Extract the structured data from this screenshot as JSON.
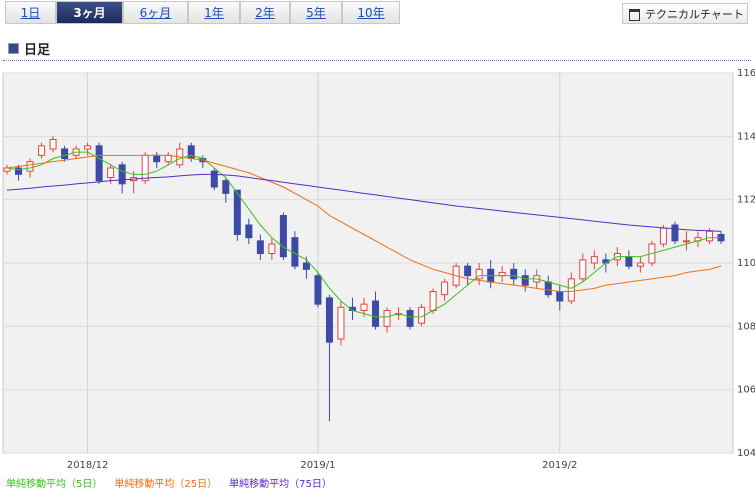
{
  "tabs": [
    "1日",
    "3ヶ月",
    "6ヶ月",
    "1年",
    "2年",
    "5年",
    "10年"
  ],
  "active_tab": 1,
  "button": "テクニカルチャート",
  "chart_data": {
    "type": "candlestick",
    "title": "日足",
    "categories": [
      null,
      null,
      null,
      null,
      null,
      null,
      null,
      "2018/12",
      null,
      null,
      null,
      null,
      null,
      null,
      null,
      null,
      null,
      null,
      null,
      null,
      null,
      null,
      null,
      null,
      null,
      null,
      null,
      "2019/1",
      null,
      null,
      null,
      null,
      null,
      null,
      null,
      null,
      null,
      null,
      null,
      null,
      null,
      null,
      null,
      null,
      null,
      null,
      null,
      null,
      "2019/2",
      null,
      null,
      null,
      null,
      null,
      null,
      null,
      null,
      null,
      null,
      null,
      null,
      null,
      null
    ],
    "open": [
      112.9,
      113.0,
      112.9,
      113.4,
      113.6,
      113.6,
      113.4,
      113.6,
      113.7,
      112.7,
      113.1,
      112.6,
      112.6,
      113.4,
      113.2,
      113.1,
      113.7,
      113.3,
      112.9,
      112.6,
      112.3,
      111.2,
      110.7,
      110.3,
      111.5,
      110.8,
      110.0,
      109.6,
      108.9,
      107.6,
      108.6,
      108.5,
      108.8,
      108.0,
      108.4,
      108.5,
      108.1,
      108.5,
      109.0,
      109.3,
      109.9,
      109.5,
      109.8,
      109.6,
      109.8,
      109.6,
      109.4,
      109.4,
      109.1,
      108.8,
      109.5,
      110.0,
      110.1,
      110.1,
      110.2,
      109.9,
      110.0,
      110.6,
      111.2,
      110.7,
      110.7,
      110.7,
      110.9
    ],
    "high": [
      113.1,
      113.1,
      113.3,
      113.8,
      114.0,
      113.7,
      113.7,
      113.8,
      113.8,
      113.1,
      113.2,
      112.9,
      113.5,
      113.5,
      113.5,
      113.8,
      113.8,
      113.4,
      113.0,
      112.7,
      112.3,
      111.4,
      110.9,
      110.8,
      111.6,
      111.0,
      110.2,
      109.7,
      109.0,
      108.8,
      108.9,
      108.9,
      109.1,
      108.6,
      108.6,
      108.6,
      108.7,
      109.2,
      109.5,
      110.0,
      110.0,
      110.0,
      110.1,
      109.9,
      110.0,
      109.8,
      109.8,
      109.6,
      109.3,
      109.7,
      110.3,
      110.4,
      110.3,
      110.5,
      110.4,
      110.2,
      110.7,
      111.2,
      111.3,
      111.0,
      111.0,
      111.1,
      111.0
    ],
    "low": [
      112.8,
      112.6,
      112.7,
      113.3,
      113.5,
      113.2,
      113.3,
      113.4,
      112.5,
      112.5,
      112.2,
      112.2,
      112.5,
      113.0,
      113.1,
      113.0,
      113.2,
      113.0,
      112.3,
      111.9,
      110.7,
      110.6,
      110.1,
      110.1,
      110.1,
      109.8,
      109.5,
      108.6,
      105.0,
      107.4,
      108.2,
      108.3,
      107.9,
      107.8,
      108.2,
      107.9,
      108.0,
      108.4,
      108.8,
      109.2,
      109.3,
      109.3,
      109.2,
      109.4,
      109.3,
      109.1,
      109.2,
      108.9,
      108.5,
      108.7,
      109.4,
      109.8,
      109.7,
      109.9,
      109.8,
      109.7,
      109.9,
      110.5,
      110.6,
      110.4,
      110.5,
      110.6,
      110.6
    ],
    "close": [
      113.0,
      112.8,
      113.2,
      113.7,
      113.9,
      113.3,
      113.6,
      113.7,
      112.6,
      113.0,
      112.5,
      112.7,
      113.4,
      113.2,
      113.4,
      113.6,
      113.3,
      113.2,
      112.4,
      112.2,
      110.9,
      110.8,
      110.3,
      110.6,
      110.2,
      109.9,
      109.8,
      108.7,
      107.5,
      108.6,
      108.5,
      108.7,
      108.0,
      108.5,
      108.4,
      108.0,
      108.6,
      109.1,
      109.4,
      109.9,
      109.6,
      109.8,
      109.4,
      109.7,
      109.5,
      109.3,
      109.6,
      109.0,
      108.8,
      109.5,
      110.1,
      110.2,
      110.0,
      110.3,
      109.9,
      110.0,
      110.6,
      111.1,
      110.7,
      110.7,
      110.8,
      111.0,
      110.7
    ],
    "up_color": "#e2463c",
    "down_color": "#3d4aa6",
    "series": [
      {
        "name": "単純移動平均（5日）",
        "color": "#39c418",
        "values": [
          113.0,
          112.95,
          113.0,
          113.1,
          113.3,
          113.4,
          113.5,
          113.5,
          113.3,
          113.1,
          112.9,
          112.8,
          112.8,
          112.9,
          113.1,
          113.3,
          113.4,
          113.3,
          113.0,
          112.7,
          112.2,
          111.7,
          111.2,
          110.8,
          110.5,
          110.3,
          110.1,
          109.7,
          109.2,
          108.8,
          108.5,
          108.4,
          108.3,
          108.3,
          108.4,
          108.3,
          108.3,
          108.5,
          108.7,
          109.0,
          109.3,
          109.6,
          109.6,
          109.6,
          109.6,
          109.5,
          109.5,
          109.4,
          109.3,
          109.2,
          109.4,
          109.7,
          110.0,
          110.2,
          110.2,
          110.2,
          110.3,
          110.4,
          110.5,
          110.6,
          110.7,
          110.8,
          110.8
        ]
      },
      {
        "name": "単純移動平均（25日）",
        "color": "#ee6f16",
        "values": [
          113.0,
          113.05,
          113.1,
          113.15,
          113.2,
          113.25,
          113.3,
          113.35,
          113.4,
          113.4,
          113.4,
          113.4,
          113.4,
          113.4,
          113.4,
          113.35,
          113.3,
          113.25,
          113.15,
          113.05,
          112.95,
          112.85,
          112.7,
          112.55,
          112.4,
          112.2,
          112.0,
          111.8,
          111.5,
          111.3,
          111.1,
          110.9,
          110.7,
          110.5,
          110.3,
          110.1,
          109.95,
          109.8,
          109.7,
          109.6,
          109.5,
          109.45,
          109.4,
          109.35,
          109.3,
          109.25,
          109.2,
          109.15,
          109.1,
          109.1,
          109.15,
          109.2,
          109.3,
          109.35,
          109.4,
          109.45,
          109.5,
          109.55,
          109.6,
          109.7,
          109.75,
          109.8,
          109.9
        ]
      },
      {
        "name": "単純移動平均（75日）",
        "color": "#5a2bc2",
        "values": [
          112.3,
          112.33,
          112.36,
          112.4,
          112.43,
          112.46,
          112.5,
          112.53,
          112.56,
          112.6,
          112.62,
          112.65,
          112.68,
          112.7,
          112.72,
          112.75,
          112.78,
          112.8,
          112.8,
          112.78,
          112.75,
          112.7,
          112.65,
          112.6,
          112.55,
          112.5,
          112.45,
          112.4,
          112.35,
          112.3,
          112.25,
          112.2,
          112.15,
          112.1,
          112.05,
          112.0,
          111.95,
          111.9,
          111.85,
          111.8,
          111.76,
          111.72,
          111.68,
          111.64,
          111.6,
          111.56,
          111.52,
          111.48,
          111.44,
          111.4,
          111.36,
          111.32,
          111.28,
          111.24,
          111.2,
          111.17,
          111.14,
          111.11,
          111.08,
          111.05,
          111.03,
          111.02,
          111.0
        ]
      }
    ],
    "ylim": [
      104,
      116
    ],
    "yticks": [
      104,
      106,
      108,
      110,
      112,
      114,
      116
    ],
    "grid": true
  }
}
